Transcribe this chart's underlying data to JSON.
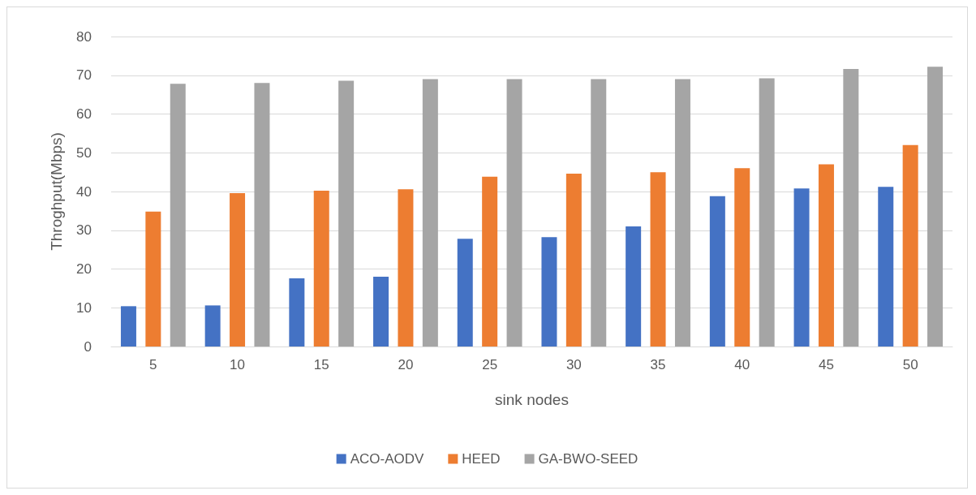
{
  "chart_data": {
    "type": "bar",
    "xlabel": "sink nodes",
    "ylabel": "Throghput(Mbps)",
    "categories": [
      "5",
      "10",
      "15",
      "20",
      "25",
      "30",
      "35",
      "40",
      "45",
      "50"
    ],
    "series": [
      {
        "name": "ACO-AODV",
        "color": "#4472c4",
        "values": [
          10.4,
          10.6,
          17.6,
          18,
          27.8,
          28.2,
          31,
          38.8,
          40.8,
          41.2
        ]
      },
      {
        "name": "HEED",
        "color": "#ed7d31",
        "values": [
          34.8,
          39.6,
          40.2,
          40.6,
          43.8,
          44.6,
          45,
          46,
          47,
          52
        ]
      },
      {
        "name": "GA-BWO-SEED",
        "color": "#a5a5a5",
        "values": [
          67.8,
          68,
          68.6,
          69,
          69,
          69,
          69,
          69.2,
          71.6,
          72.2
        ]
      }
    ],
    "ylim": [
      0,
      80
    ],
    "yticks": [
      0,
      10,
      20,
      30,
      40,
      50,
      60,
      70,
      80
    ],
    "grid": "y",
    "legend": "bottom"
  }
}
